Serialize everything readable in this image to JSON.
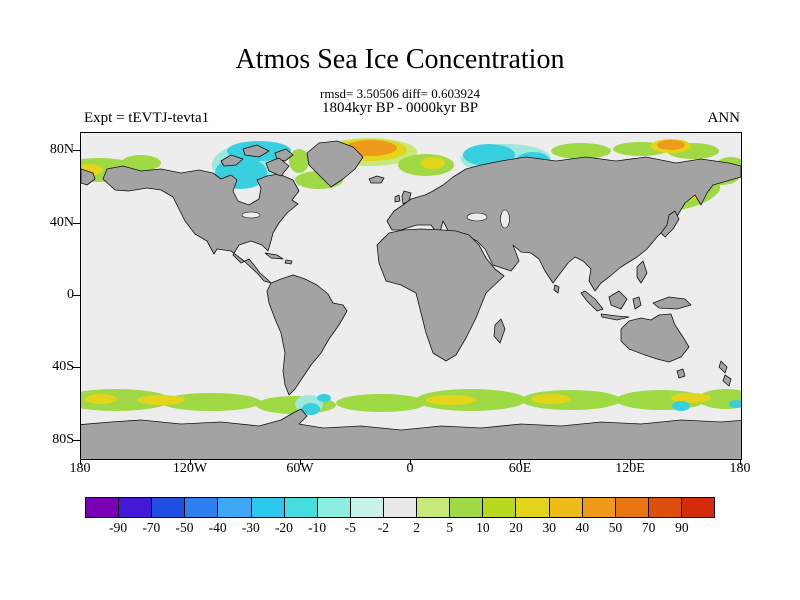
{
  "header": {
    "title": "Atmos Sea Ice Concentration",
    "stats": "rmsd= 3.50506 diff= 0.603924",
    "period": "1804kyr BP - 0000kyr BP",
    "experiment": "Expt = tEVTJ-tevta1",
    "season": "ANN"
  },
  "axes": {
    "y_ticks": [
      "80N",
      "40N",
      "0",
      "40S",
      "80S"
    ],
    "x_ticks": [
      "180",
      "120W",
      "60W",
      "0",
      "60E",
      "120E",
      "180"
    ]
  },
  "colorbar": {
    "levels": [
      "-90",
      "-70",
      "-50",
      "-40",
      "-30",
      "-20",
      "-10",
      "-5",
      "-2",
      "2",
      "5",
      "10",
      "20",
      "30",
      "40",
      "50",
      "70",
      "90"
    ],
    "colors": [
      "#7a00b8",
      "#4318d6",
      "#1f4fe0",
      "#2e7ff0",
      "#3fa8f5",
      "#2ec8ee",
      "#45ddde",
      "#8ceee0",
      "#c8f3e8",
      "#e9e9e9",
      "#c8e87a",
      "#9fd944",
      "#b8d921",
      "#e3d51c",
      "#edbb1a",
      "#f09a1a",
      "#e87412",
      "#e04e0e",
      "#d42b0b"
    ]
  },
  "map_colors": {
    "ocean": "#ededed",
    "land": "#a3a3a3",
    "coastline": "#111111"
  },
  "chart_data": {
    "type": "heatmap",
    "subtype": "filled-contour difference map on equirectangular world projection",
    "title": "Atmos Sea Ice Concentration",
    "subtitle": "rmsd= 3.50506 diff= 0.603924",
    "period": "1804kyr BP - 0000kyr BP",
    "experiment": "tEVTJ-tevta1",
    "season": "ANN",
    "rmsd": 3.50506,
    "diff": 0.603924,
    "x_axis": {
      "ticks": [
        "180",
        "120W",
        "60W",
        "0",
        "60E",
        "120E",
        "180"
      ],
      "range_deg": [
        -180,
        180
      ]
    },
    "y_axis": {
      "ticks": [
        "80N",
        "40N",
        "0",
        "40S",
        "80S"
      ],
      "range_deg": [
        -90,
        90
      ]
    },
    "contour_levels": [
      -90,
      -70,
      -50,
      -40,
      -30,
      -20,
      -10,
      -5,
      -2,
      2,
      5,
      10,
      20,
      30,
      40,
      50,
      70,
      90
    ],
    "palette": [
      "#7a00b8",
      "#4318d6",
      "#1f4fe0",
      "#2e7ff0",
      "#3fa8f5",
      "#2ec8ee",
      "#45ddde",
      "#8ceee0",
      "#c8f3e8",
      "#e9e9e9",
      "#c8e87a",
      "#9fd944",
      "#b8d921",
      "#e3d51c",
      "#edbb1a",
      "#f09a1a",
      "#e87412",
      "#e04e0e",
      "#d42b0b"
    ],
    "legend_position": "bottom horizontal colorbar",
    "regions": [
      {
        "area": "Bering/Chukchi Seas (~55-75N near 180)",
        "anomaly": "+2 to +30 (green with yellow core)"
      },
      {
        "area": "Hudson Bay / Canadian Arctic (~55-80N, 60-110W)",
        "anomaly": "-5 to -30 (cyan)"
      },
      {
        "area": "Greenland/Norwegian Seas (~70-85N, 40W-10E)",
        "anomaly": "+20 to +50 (yellow-orange core)"
      },
      {
        "area": "Labrador Sea and south of Greenland",
        "anomaly": "+2 to +10 (green)"
      },
      {
        "area": "Barents/Kara Seas (~70-80N, 30-90E)",
        "anomaly": "-5 to -30 (cyan with pale-cyan fringe)"
      },
      {
        "area": "East Siberian Arctic coast (~70-80N, 120E-180)",
        "anomaly": "+2 to +40 (green, small orange patch)"
      },
      {
        "area": "Sea of Okhotsk / Kamchatka (~45-60N, 135-160E)",
        "anomaly": "+5 to +30 (green with yellow core)"
      },
      {
        "area": "Southern Ocean circumpolar band (~55-68S)",
        "anomaly": "+2 to +30 (green/yellow) with scattered -10 to -20 (cyan) patches"
      }
    ]
  }
}
